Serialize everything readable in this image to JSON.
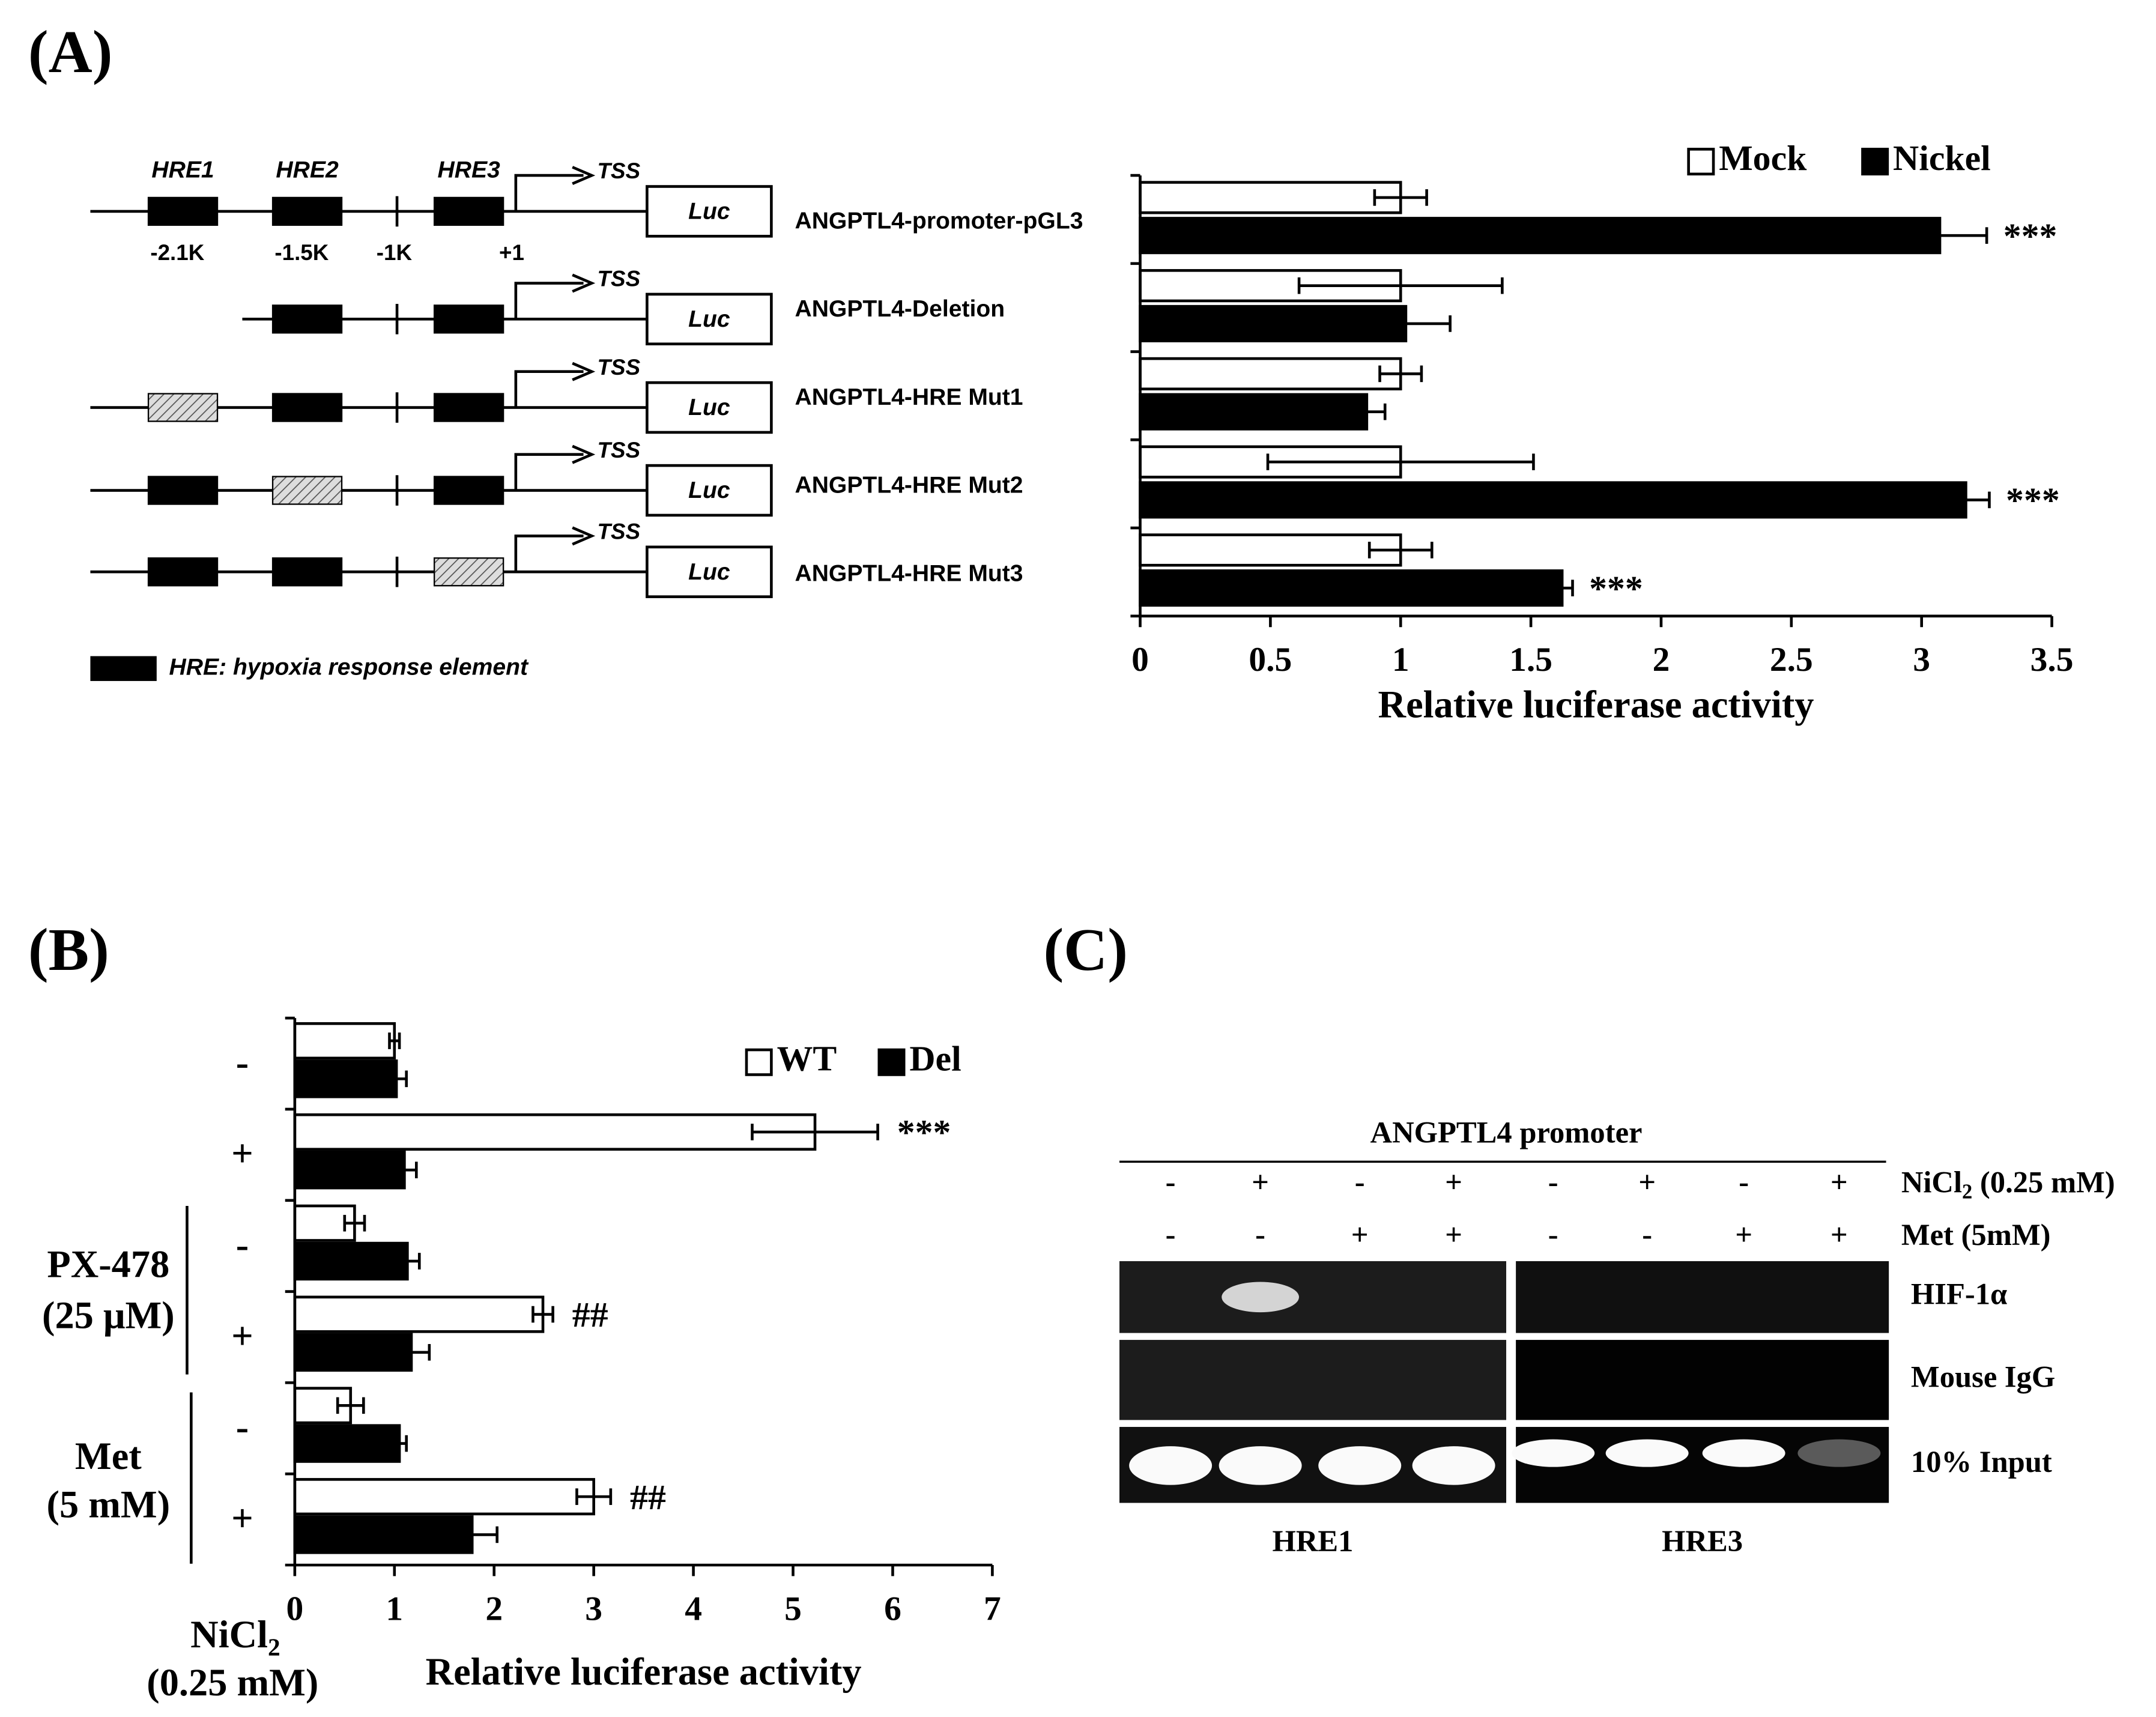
{
  "figure": {
    "panel_a": "(A)",
    "panel_b": "(B)",
    "panel_c": "(C)"
  },
  "diagram": {
    "elements": [
      "HRE1",
      "HRE2",
      "HRE3"
    ],
    "positions": [
      "-2.1K",
      "-1.5K",
      "-1K",
      "+1"
    ],
    "rows": [
      {
        "tss": "TSS",
        "luc": "Luc"
      },
      {
        "tss": "TSS",
        "luc": "Luc"
      },
      {
        "tss": "TSS",
        "luc": "Luc"
      },
      {
        "tss": "TSS",
        "luc": "Luc"
      },
      {
        "tss": "TSS",
        "luc": "Luc"
      }
    ],
    "legend": "HRE: hypoxia response element"
  },
  "chart_data": [
    {
      "type": "bar",
      "orientation": "horizontal",
      "categories": [
        "ANGPTL4-promoter-pGL3",
        "ANGPTL4-Deletion",
        "ANGPTL4-HRE Mut1",
        "ANGPTL4-HRE Mut2",
        "ANGPTL4-HRE Mut3"
      ],
      "series": [
        {
          "name": "Mock",
          "color": "#ffffff",
          "values": [
            1,
            1,
            1,
            1,
            1
          ],
          "errors": [
            0.1,
            0.39,
            0.08,
            0.51,
            0.12
          ]
        },
        {
          "name": "Nickel",
          "color": "#000000",
          "values": [
            3.07,
            1.02,
            0.87,
            3.17,
            1.62
          ],
          "errors": [
            0.18,
            0.17,
            0.07,
            0.09,
            0.04
          ],
          "annotations": [
            "***",
            null,
            null,
            "***",
            "***"
          ]
        }
      ],
      "xlabel": "Relative luciferase activity",
      "xlim": [
        0,
        3.5
      ],
      "xticks": [
        0,
        0.5,
        1,
        1.5,
        2,
        2.5,
        3,
        3.5
      ],
      "legend": "top-right"
    },
    {
      "type": "bar",
      "orientation": "horizontal",
      "categories": [
        "-",
        "+",
        "-",
        "+",
        "-",
        "+"
      ],
      "series": [
        {
          "name": "WT",
          "color": "#ffffff",
          "values": [
            1.0,
            5.22,
            0.6,
            2.49,
            0.56,
            3.0
          ],
          "errors": [
            0.05,
            0.63,
            0.1,
            0.1,
            0.13,
            0.17
          ],
          "annotations": [
            null,
            "***",
            null,
            "##",
            null,
            "##"
          ]
        },
        {
          "name": "Del",
          "color": "#000000",
          "values": [
            1.02,
            1.1,
            1.13,
            1.17,
            1.05,
            1.78
          ],
          "errors": [
            0.1,
            0.12,
            0.12,
            0.18,
            0.07,
            0.25
          ]
        }
      ],
      "groups": [
        {
          "label": "PX-478",
          "dose": "(25 μM)"
        },
        {
          "label": "Met",
          "dose": "(5 mM)"
        }
      ],
      "treatment": {
        "name": "NiCl",
        "subscript": "2",
        "dose": "(0.25 mM)"
      },
      "xlabel": "Relative luciferase activity",
      "xlim": [
        0,
        7
      ],
      "xticks": [
        0,
        1,
        2,
        3,
        4,
        5,
        6,
        7
      ],
      "legend": "top-right"
    }
  ],
  "gel": {
    "title": "ANGPTL4 promoter",
    "conditions": [
      {
        "name": "NiCl",
        "subscript": "2",
        "dose": " (0.25 mM)",
        "marks": [
          "-",
          "+",
          "-",
          "+",
          "-",
          "+",
          "-",
          "+"
        ]
      },
      {
        "name": "Met (5mM)",
        "marks": [
          "-",
          "-",
          "+",
          "+",
          "-",
          "-",
          "+",
          "+"
        ]
      }
    ],
    "rows": [
      "HIF-1α",
      "Mouse IgG",
      "10% Input"
    ],
    "targets": [
      "HRE1",
      "HRE3"
    ]
  }
}
